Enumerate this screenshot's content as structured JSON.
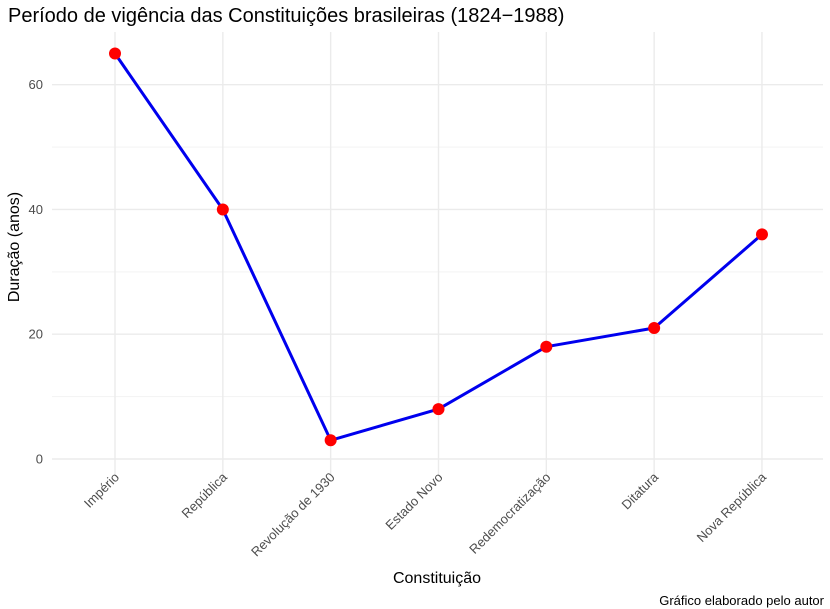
{
  "chart_data": {
    "type": "line",
    "title": "Período de vigência das Constituições brasileiras (1824−1988)",
    "xlabel": "Constituição",
    "ylabel": "Duração (anos)",
    "caption": "Gráfico elaborado pelo autor",
    "categories": [
      "Império",
      "República",
      "Revolução de 1930",
      "Estado Novo",
      "Redemocratização",
      "Ditatura",
      "Nova República"
    ],
    "series": [
      {
        "values": [
          65,
          40,
          3,
          8,
          18,
          21,
          36
        ],
        "line_color": "#0000ee",
        "point_color": "#ff0000"
      }
    ],
    "ylim": [
      0,
      65
    ],
    "yticks": [
      0,
      20,
      40,
      60
    ],
    "grid": true,
    "legend": "none"
  }
}
